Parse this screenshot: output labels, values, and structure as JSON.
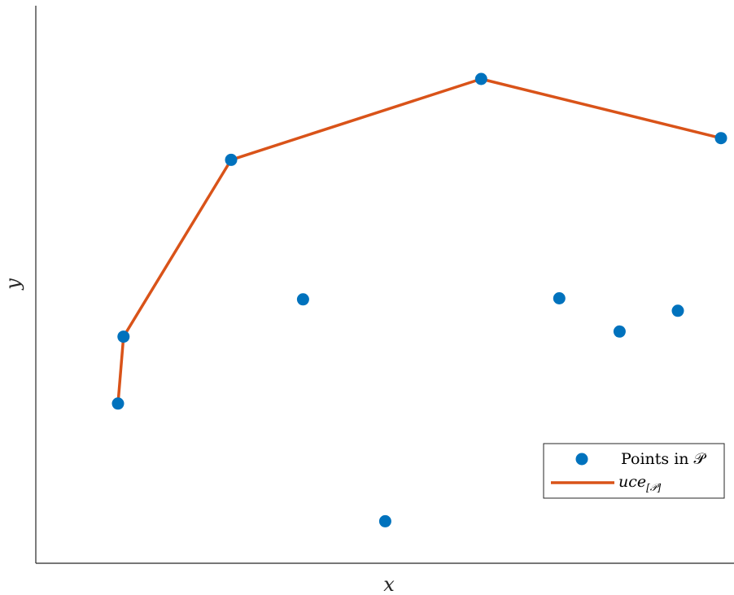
{
  "chart_data": {
    "type": "scatter",
    "xlabel": "x",
    "ylabel": "y",
    "xlim": [
      0,
      10
    ],
    "ylim": [
      0,
      10
    ],
    "grid": false,
    "legend_position": "bottom-right",
    "series": [
      {
        "name": "Points in 𝒫",
        "kind": "scatter",
        "color": "#0072BD",
        "x": [
          1.2,
          1.28,
          2.85,
          3.9,
          5.1,
          6.5,
          7.64,
          8.52,
          9.37,
          10.0
        ],
        "y": [
          3.08,
          4.37,
          7.78,
          5.09,
          0.81,
          9.34,
          5.11,
          4.47,
          4.87,
          8.2
        ]
      },
      {
        "name": "uce",
        "name_subscript": "[𝒫]",
        "kind": "line",
        "color": "#D95319",
        "x": [
          1.2,
          1.28,
          2.85,
          6.5,
          10.0
        ],
        "y": [
          3.08,
          4.37,
          7.78,
          9.34,
          8.2
        ]
      }
    ]
  }
}
